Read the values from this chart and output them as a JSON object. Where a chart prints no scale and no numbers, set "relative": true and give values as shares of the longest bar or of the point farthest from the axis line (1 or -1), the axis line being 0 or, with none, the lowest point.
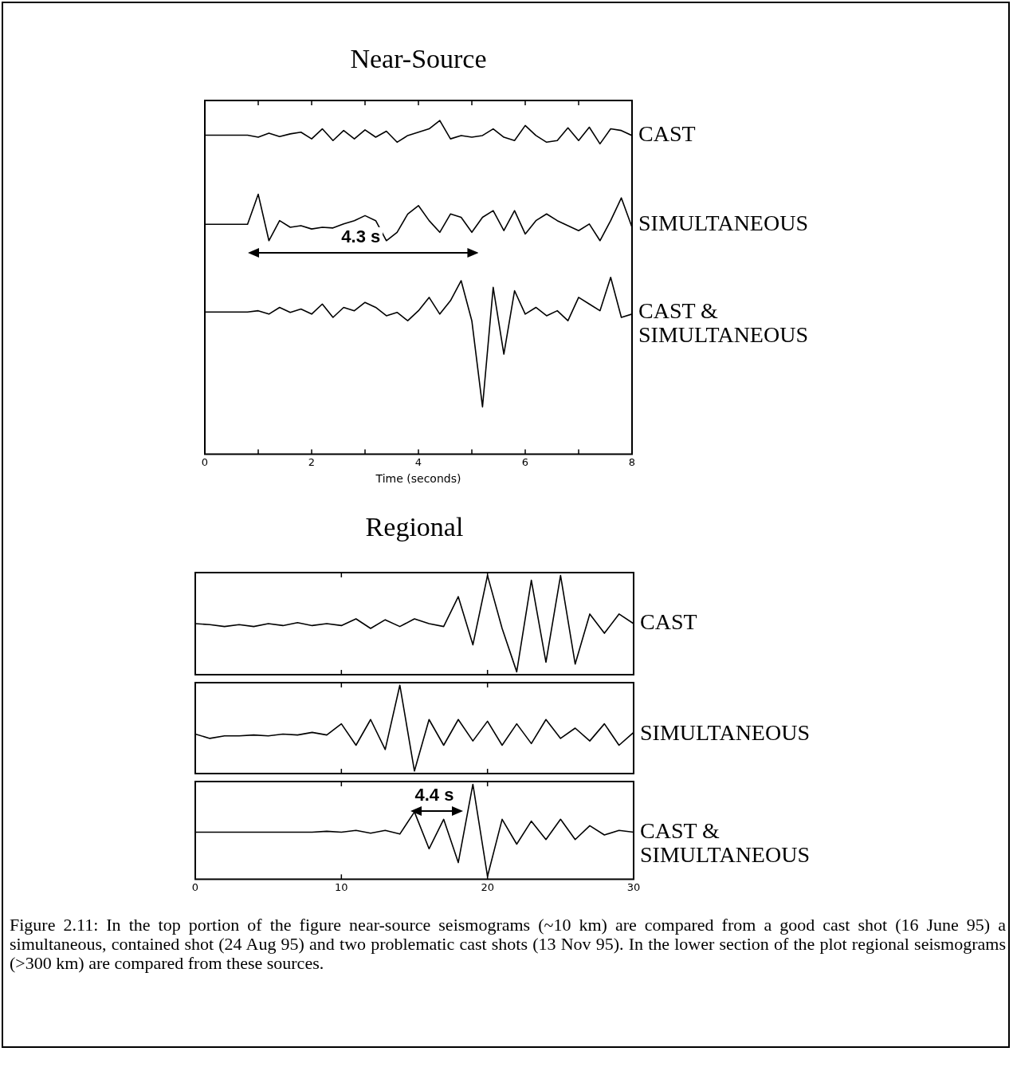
{
  "chart_data": [
    {
      "type": "line",
      "title": "Near-Source",
      "xlabel": "Time (seconds)",
      "relative": true,
      "xlim": [
        0,
        8
      ],
      "xticks": [
        0,
        {
          "value": 1,
          "label": null
        },
        2,
        {
          "value": 3,
          "label": null
        },
        4,
        {
          "value": 5,
          "label": null
        },
        6,
        {
          "value": 7,
          "label": null
        },
        8
      ],
      "x": [
        0,
        0.2,
        0.4,
        0.6,
        0.8,
        1,
        1.2,
        1.4,
        1.6,
        1.8,
        2,
        2.2,
        2.4,
        2.6,
        2.8,
        3,
        3.2,
        3.4,
        3.6,
        3.8,
        4,
        4.2,
        4.4,
        4.6,
        4.8,
        5,
        5.2,
        5.4,
        5.6,
        5.8,
        6,
        6.2,
        6.4,
        6.6,
        6.8,
        7,
        7.2,
        7.4,
        7.6,
        7.8,
        8
      ],
      "series": [
        {
          "name": "CAST",
          "color": "#000000",
          "values": [
            0.956,
            0.956,
            0.956,
            0.956,
            0.956,
            0.95,
            0.962,
            0.952,
            0.96,
            0.965,
            0.945,
            0.975,
            0.94,
            0.97,
            0.945,
            0.972,
            0.95,
            0.968,
            0.935,
            0.955,
            0.965,
            0.975,
            1.0,
            0.945,
            0.955,
            0.95,
            0.955,
            0.975,
            0.95,
            0.94,
            0.985,
            0.955,
            0.935,
            0.94,
            0.978,
            0.94,
            0.98,
            0.93,
            0.975,
            0.97,
            0.955
          ]
        },
        {
          "name": "SIMULTANEOUS",
          "color": "#000000",
          "values": [
            0.689,
            0.689,
            0.689,
            0.689,
            0.689,
            0.779,
            0.64,
            0.7,
            0.68,
            0.685,
            0.675,
            0.68,
            0.678,
            0.69,
            0.7,
            0.715,
            0.7,
            0.64,
            0.665,
            0.72,
            0.745,
            0.7,
            0.665,
            0.72,
            0.71,
            0.665,
            0.71,
            0.73,
            0.67,
            0.73,
            0.66,
            0.7,
            0.72,
            0.7,
            0.685,
            0.67,
            0.69,
            0.64,
            0.7,
            0.768,
            0.68
          ]
        },
        {
          "name": "CAST & SIMULTANEOUS",
          "color": "#000000",
          "values": [
            0.426,
            0.426,
            0.426,
            0.426,
            0.426,
            0.43,
            0.42,
            0.44,
            0.425,
            0.435,
            0.42,
            0.45,
            0.41,
            0.44,
            0.43,
            0.455,
            0.44,
            0.415,
            0.425,
            0.4,
            0.43,
            0.47,
            0.42,
            0.46,
            0.52,
            0.4,
            0.142,
            0.5,
            0.3,
            0.49,
            0.42,
            0.44,
            0.415,
            0.43,
            0.4,
            0.47,
            0.45,
            0.43,
            0.53,
            0.41,
            0.42
          ]
        }
      ],
      "annotations": [
        "4.3 s"
      ]
    },
    {
      "type": "line",
      "title": "Regional",
      "relative": true,
      "xlim": [
        0,
        30
      ],
      "xticks": [
        0,
        10,
        20,
        30
      ],
      "tick_labels": false,
      "x": [
        0,
        1,
        2,
        3,
        4,
        5,
        6,
        7,
        8,
        9,
        10,
        11,
        12,
        13,
        14,
        15,
        16,
        17,
        18,
        19,
        20,
        21,
        22,
        23,
        24,
        25,
        26,
        27,
        28,
        29,
        30
      ],
      "series": [
        {
          "name": "CAST",
          "color": "#000000",
          "values": [
            0.5,
            0.49,
            0.47,
            0.49,
            0.47,
            0.5,
            0.48,
            0.51,
            0.48,
            0.5,
            0.48,
            0.55,
            0.45,
            0.54,
            0.47,
            0.55,
            0.5,
            0.47,
            0.78,
            0.28,
            1.0,
            0.45,
            0.0,
            0.95,
            0.1,
            1.0,
            0.08,
            0.6,
            0.4,
            0.6,
            0.5
          ]
        }
      ]
    },
    {
      "type": "line",
      "relative": true,
      "xlim": [
        0,
        30
      ],
      "xticks": [
        0,
        10,
        20,
        30
      ],
      "tick_labels": false,
      "x": [
        0,
        1,
        2,
        3,
        4,
        5,
        6,
        7,
        8,
        9,
        10,
        11,
        12,
        13,
        14,
        15,
        16,
        17,
        18,
        19,
        20,
        21,
        22,
        23,
        24,
        25,
        26,
        27,
        28,
        29,
        30
      ],
      "series": [
        {
          "name": "SIMULTANEOUS",
          "color": "#000000",
          "values": [
            0.43,
            0.38,
            0.41,
            0.41,
            0.42,
            0.41,
            0.43,
            0.42,
            0.45,
            0.42,
            0.55,
            0.3,
            0.6,
            0.25,
            1.0,
            0.0,
            0.6,
            0.3,
            0.6,
            0.35,
            0.58,
            0.3,
            0.55,
            0.32,
            0.6,
            0.38,
            0.5,
            0.35,
            0.55,
            0.3,
            0.45
          ]
        }
      ]
    },
    {
      "type": "line",
      "relative": true,
      "xlim": [
        0,
        30
      ],
      "xticks": [
        0,
        10,
        20,
        30
      ],
      "x": [
        0,
        1,
        2,
        3,
        4,
        5,
        6,
        7,
        8,
        9,
        10,
        11,
        12,
        13,
        14,
        15,
        16,
        17,
        18,
        19,
        20,
        21,
        22,
        23,
        24,
        25,
        26,
        27,
        28,
        29,
        30
      ],
      "series": [
        {
          "name": "CAST & SIMULTANEOUS",
          "color": "#000000",
          "values": [
            0.48,
            0.48,
            0.48,
            0.48,
            0.48,
            0.48,
            0.48,
            0.48,
            0.48,
            0.49,
            0.48,
            0.5,
            0.47,
            0.5,
            0.46,
            0.7,
            0.3,
            0.62,
            0.15,
            1.0,
            0.0,
            0.62,
            0.35,
            0.6,
            0.4,
            0.62,
            0.4,
            0.55,
            0.45,
            0.5,
            0.48
          ]
        }
      ],
      "annotations": [
        "4.4 s",
        "Figure 2.11:    In the top portion of the figure near-source seismograms (~10 km) are compared from a good cast shot (16 June 95) a simultaneous, contained shot (24 Aug 95) and two problematic cast shots (13 Nov 95). In the lower section of the plot regional seismograms (>300 km) are compared from these sources."
      ]
    }
  ]
}
